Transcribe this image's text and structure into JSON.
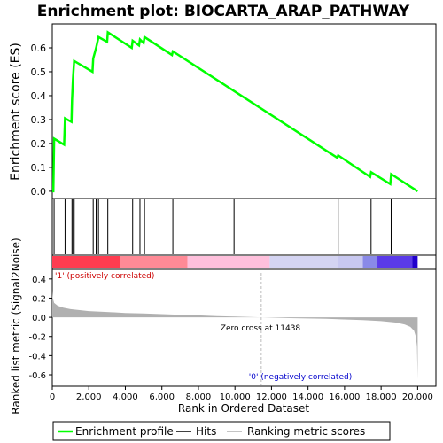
{
  "title": "Enrichment plot: BIOCARTA_ARAP_PATHWAY",
  "colors": {
    "es_line": "#00ff00",
    "hits": "#000000",
    "metric_fill": "#b0b0b0",
    "zero_line": "#bbbbbb",
    "pos_label": "#cc0000",
    "neg_label": "#0000cc",
    "frame": "#000000"
  },
  "chart_data": [
    {
      "type": "line",
      "name": "enrichment-profile",
      "ylabel": "Enrichment score (ES)",
      "xlim": [
        0,
        21000
      ],
      "ylim": [
        -0.03,
        0.7
      ],
      "yticks": [
        0.0,
        0.1,
        0.2,
        0.3,
        0.4,
        0.5,
        0.6
      ],
      "ytick_labels": [
        "0.0",
        "0.1",
        "0.2",
        "0.3",
        "0.4",
        "0.5",
        "0.6"
      ],
      "points": [
        [
          0,
          0.0
        ],
        [
          60,
          0.0
        ],
        [
          100,
          0.22
        ],
        [
          650,
          0.195
        ],
        [
          700,
          0.305
        ],
        [
          1050,
          0.29
        ],
        [
          1080,
          0.38
        ],
        [
          1130,
          0.465
        ],
        [
          1200,
          0.545
        ],
        [
          2200,
          0.5
        ],
        [
          2240,
          0.555
        ],
        [
          2400,
          0.6
        ],
        [
          2530,
          0.645
        ],
        [
          3000,
          0.625
        ],
        [
          3040,
          0.665
        ],
        [
          4350,
          0.6
        ],
        [
          4400,
          0.63
        ],
        [
          4750,
          0.61
        ],
        [
          4800,
          0.635
        ],
        [
          5000,
          0.62
        ],
        [
          5050,
          0.645
        ],
        [
          6550,
          0.57
        ],
        [
          6600,
          0.585
        ],
        [
          15600,
          0.14
        ],
        [
          15650,
          0.15
        ],
        [
          17400,
          0.06
        ],
        [
          17450,
          0.08
        ],
        [
          18500,
          0.03
        ],
        [
          18550,
          0.072
        ],
        [
          20000,
          0.0
        ]
      ]
    },
    {
      "type": "scatter",
      "name": "hits",
      "x": [
        100,
        700,
        1080,
        1130,
        1200,
        2240,
        2400,
        2530,
        3040,
        4400,
        4800,
        5050,
        6600,
        9950,
        15650,
        17450,
        18550
      ]
    },
    {
      "type": "heatmap",
      "name": "ranking-color-bar",
      "xlim": [
        0,
        20000
      ],
      "segments": [
        {
          "x": [
            0,
            3700
          ],
          "color": "#ff3c50"
        },
        {
          "x": [
            3700,
            7400
          ],
          "color": "#ff8a96"
        },
        {
          "x": [
            7400,
            11900
          ],
          "color": "#ffc0dc"
        },
        {
          "x": [
            11900,
            15600
          ],
          "color": "#d4d4f2"
        },
        {
          "x": [
            15600,
            17000
          ],
          "color": "#c8c8f0"
        },
        {
          "x": [
            17000,
            17800
          ],
          "color": "#8a8ae8"
        },
        {
          "x": [
            17800,
            19700
          ],
          "color": "#5a3ae8"
        },
        {
          "x": [
            19700,
            20000
          ],
          "color": "#2000cc"
        }
      ]
    },
    {
      "type": "area",
      "name": "ranked-list-metric",
      "xlabel": "Rank in Ordered Dataset",
      "ylabel": "Ranked list metric (Signal2Noise)",
      "xlim": [
        0,
        21000
      ],
      "ylim": [
        -0.72,
        0.5
      ],
      "xticks": [
        0,
        2000,
        4000,
        6000,
        8000,
        10000,
        12000,
        14000,
        16000,
        18000,
        20000
      ],
      "xtick_labels": [
        "0",
        "2,000",
        "4,000",
        "6,000",
        "8,000",
        "10,000",
        "12,000",
        "14,000",
        "16,000",
        "18,000",
        "20,000"
      ],
      "yticks": [
        -0.6,
        -0.4,
        -0.2,
        0.0,
        0.2,
        0.4
      ],
      "ytick_labels": [
        "-0.6",
        "-0.4",
        "-0.2",
        "0.0",
        "0.2",
        "0.4"
      ],
      "x": [
        0,
        30,
        100,
        300,
        600,
        1000,
        1500,
        2000,
        3000,
        4000,
        5000,
        6000,
        7000,
        8000,
        9000,
        10000,
        11438,
        13000,
        15000,
        17000,
        18000,
        18800,
        19300,
        19600,
        19800,
        19900,
        19960,
        20000
      ],
      "values": [
        0.27,
        0.2,
        0.15,
        0.12,
        0.1,
        0.085,
        0.075,
        0.065,
        0.055,
        0.045,
        0.04,
        0.033,
        0.027,
        0.02,
        0.013,
        0.007,
        0.0,
        -0.008,
        -0.016,
        -0.03,
        -0.04,
        -0.055,
        -0.075,
        -0.1,
        -0.14,
        -0.2,
        -0.3,
        -0.65
      ],
      "zero_cross": 11438,
      "annotations": {
        "zero_cross": "Zero cross at 11438",
        "positive": "'1' (positively correlated)",
        "negative": "'0' (negatively correlated)"
      }
    }
  ],
  "legend": {
    "items": [
      {
        "label": "Enrichment profile",
        "color": "#00ff00"
      },
      {
        "label": "Hits",
        "color": "#000000"
      },
      {
        "label": "Ranking metric scores",
        "color": "#b0b0b0"
      }
    ]
  }
}
